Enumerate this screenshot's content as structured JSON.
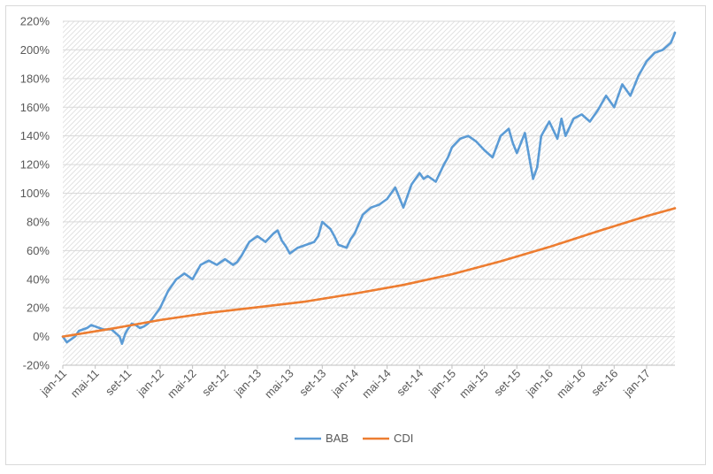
{
  "chart_data": {
    "type": "line",
    "title": "",
    "xlabel": "",
    "ylabel": "",
    "ylim": [
      -20,
      220
    ],
    "y_ticks": [
      -20,
      0,
      20,
      40,
      60,
      80,
      100,
      120,
      140,
      160,
      180,
      200,
      220
    ],
    "y_tick_labels": [
      "-20%",
      "0%",
      "20%",
      "40%",
      "60%",
      "80%",
      "100%",
      "120%",
      "140%",
      "160%",
      "180%",
      "200%",
      "220%"
    ],
    "x_tick_labels": [
      "jan-11",
      "mai-11",
      "set-11",
      "jan-12",
      "mai-12",
      "set-12",
      "jan-13",
      "mai-13",
      "set-13",
      "jan-14",
      "mai-14",
      "set-14",
      "jan-15",
      "mai-15",
      "set-15",
      "jan-16",
      "mai-16",
      "set-16",
      "jan-17"
    ],
    "x_unit": "months since jan-11",
    "x_range": [
      0,
      75.5
    ],
    "grid": true,
    "plot_background": "diagonal hatch",
    "legend_position": "bottom",
    "series": [
      {
        "name": "BAB",
        "color": "#5B9BD5",
        "x": [
          0,
          0.5,
          1,
          1.5,
          2,
          2.5,
          3,
          3.5,
          4,
          5,
          6,
          7,
          7.3,
          7.7,
          8,
          8.5,
          9,
          9.5,
          10,
          10.5,
          11,
          11.5,
          12,
          13,
          14,
          15,
          16,
          17,
          18,
          19,
          20,
          21,
          21.5,
          22,
          23,
          24,
          25,
          26,
          26.5,
          27,
          27.5,
          28,
          29,
          30,
          31,
          31.5,
          32,
          33,
          33.5,
          34,
          35,
          35.5,
          36,
          37,
          38,
          39,
          40,
          41,
          42,
          43,
          44,
          44.5,
          45,
          46,
          47,
          47.5,
          48,
          49,
          50,
          51,
          52,
          53,
          54,
          55,
          55.5,
          56,
          57,
          58,
          58.5,
          59,
          60,
          61,
          61.5,
          62,
          63,
          64,
          65,
          66,
          67,
          68,
          69,
          70,
          71,
          72,
          73,
          74,
          75,
          75.5
        ],
        "values": [
          0,
          -4,
          -2,
          0,
          4,
          5,
          6,
          8,
          7,
          5,
          5,
          0,
          -5,
          2,
          5,
          9,
          8,
          6,
          7,
          9,
          12,
          16,
          20,
          32,
          40,
          44,
          40,
          50,
          53,
          50,
          54,
          50,
          52,
          56,
          66,
          70,
          66,
          72,
          74,
          67,
          63,
          58,
          62,
          64,
          66,
          70,
          80,
          75,
          70,
          64,
          62,
          68,
          72,
          85,
          90,
          92,
          96,
          104,
          90,
          106,
          114,
          110,
          112,
          108,
          120,
          125,
          132,
          138,
          140,
          136,
          130,
          125,
          140,
          145,
          135,
          128,
          142,
          110,
          118,
          140,
          150,
          138,
          152,
          140,
          152,
          155,
          150,
          158,
          168,
          160,
          176,
          168,
          182,
          192,
          198,
          200,
          205,
          212
        ]
      },
      {
        "name": "CDI",
        "color": "#ED7D31",
        "x": [
          0,
          6,
          12,
          18,
          24,
          30,
          36,
          42,
          48,
          54,
          60,
          66,
          72,
          75.5
        ],
        "values": [
          0,
          5.5,
          11.5,
          16.5,
          20.5,
          24.5,
          30,
          36,
          43.5,
          52.5,
          62.5,
          73.5,
          84,
          89.5
        ]
      }
    ]
  }
}
